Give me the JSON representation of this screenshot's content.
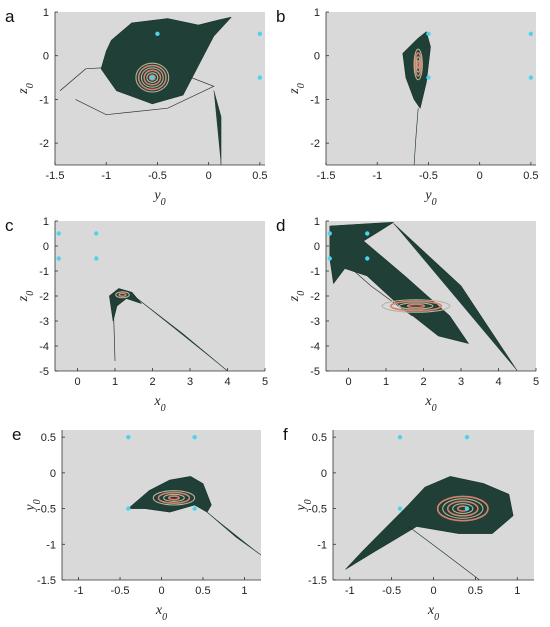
{
  "chart_data": [
    {
      "panel": "a",
      "type": "scatter",
      "xlabel": "y",
      "xlabel_sub": "0",
      "ylabel": "z",
      "ylabel_sub": "0",
      "xlim": [
        -1.5,
        0.55
      ],
      "ylim": [
        -2.5,
        1
      ],
      "xticks": [
        -1.5,
        -1,
        -0.5,
        0,
        0.5
      ],
      "xtick_labels": [
        "-1.5",
        "-1",
        "-0.5",
        "0",
        "0.5"
      ],
      "yticks": [
        1,
        0,
        -1,
        -2
      ],
      "ytick_labels": [
        "1",
        "0",
        "-1",
        "-2"
      ],
      "equilibria": [
        [
          -0.5,
          0.5
        ],
        [
          0.5,
          0.5
        ],
        [
          0.5,
          -0.5
        ],
        [
          -0.55,
          -0.5
        ]
      ],
      "colors": {
        "background": "#d9d9d9",
        "basin": "#1f3f37",
        "accent": "#d4826f",
        "equilibrium": "#4fd2ee"
      }
    },
    {
      "panel": "b",
      "type": "scatter",
      "xlabel": "y",
      "xlabel_sub": "0",
      "ylabel": "z",
      "ylabel_sub": "0",
      "xlim": [
        -1.5,
        0.55
      ],
      "ylim": [
        -2.5,
        1
      ],
      "xticks": [
        -1.5,
        -1,
        -0.5,
        0,
        0.5
      ],
      "xtick_labels": [
        "-1.5",
        "-1",
        "-0.5",
        "0",
        "0.5"
      ],
      "yticks": [
        1,
        0,
        -1,
        -2
      ],
      "ytick_labels": [
        "1",
        "0",
        "-1",
        "-2"
      ],
      "equilibria": [
        [
          -0.5,
          0.5
        ],
        [
          0.5,
          0.5
        ],
        [
          0.5,
          -0.5
        ],
        [
          -0.5,
          -0.5
        ]
      ],
      "colors": {
        "background": "#d9d9d9",
        "basin": "#1f3f37",
        "accent": "#d4826f",
        "equilibrium": "#4fd2ee"
      }
    },
    {
      "panel": "c",
      "type": "scatter",
      "xlabel": "x",
      "xlabel_sub": "0",
      "ylabel": "z",
      "ylabel_sub": "0",
      "xlim": [
        -0.6,
        5
      ],
      "ylim": [
        -5,
        1
      ],
      "xticks": [
        0,
        1,
        2,
        3,
        4,
        5
      ],
      "xtick_labels": [
        "0",
        "1",
        "2",
        "3",
        "4",
        "5"
      ],
      "yticks": [
        1,
        0,
        -1,
        -2,
        -3,
        -4,
        -5
      ],
      "ytick_labels": [
        "1",
        "0",
        "-1",
        "-2",
        "-3",
        "-4",
        "-5"
      ],
      "equilibria": [
        [
          -0.5,
          0.5
        ],
        [
          0.5,
          0.5
        ],
        [
          -0.5,
          -0.5
        ],
        [
          0.5,
          -0.5
        ]
      ],
      "colors": {
        "background": "#d9d9d9",
        "basin": "#1f3f37",
        "accent": "#d4826f",
        "equilibrium": "#4fd2ee"
      }
    },
    {
      "panel": "d",
      "type": "scatter",
      "xlabel": "x",
      "xlabel_sub": "0",
      "ylabel": "z",
      "ylabel_sub": "0",
      "xlim": [
        -0.6,
        5
      ],
      "ylim": [
        -5,
        1
      ],
      "xticks": [
        0,
        1,
        2,
        3,
        4,
        5
      ],
      "xtick_labels": [
        "0",
        "1",
        "2",
        "3",
        "4",
        "5"
      ],
      "yticks": [
        1,
        0,
        -1,
        -2,
        -3,
        -4,
        -5
      ],
      "ytick_labels": [
        "1",
        "0",
        "-1",
        "-2",
        "-3",
        "-4",
        "-5"
      ],
      "equilibria": [
        [
          -0.5,
          0.5
        ],
        [
          0.5,
          0.5
        ],
        [
          -0.5,
          -0.5
        ],
        [
          0.5,
          -0.5
        ]
      ],
      "colors": {
        "background": "#d9d9d9",
        "basin": "#1f3f37",
        "accent": "#d4826f",
        "equilibrium": "#4fd2ee"
      }
    },
    {
      "panel": "e",
      "type": "scatter",
      "xlabel": "x",
      "xlabel_sub": "0",
      "ylabel": "y",
      "ylabel_sub": "0",
      "xlim": [
        -1.2,
        1.2
      ],
      "ylim": [
        -1.5,
        0.6
      ],
      "xticks": [
        -1,
        -0.5,
        0,
        0.5,
        1
      ],
      "xtick_labels": [
        "-1",
        "-0.5",
        "0",
        "0.5",
        "1"
      ],
      "yticks": [
        0.5,
        0,
        -0.5,
        -1,
        -1.5
      ],
      "ytick_labels": [
        "0.5",
        "0",
        "-0.5",
        "-1",
        "-1.5"
      ],
      "equilibria": [
        [
          -0.4,
          0.5
        ],
        [
          0.4,
          0.5
        ],
        [
          -0.4,
          -0.5
        ],
        [
          0.4,
          -0.5
        ]
      ],
      "colors": {
        "background": "#d9d9d9",
        "basin": "#1f3f37",
        "accent": "#b7b59a",
        "equilibrium": "#4fd2ee"
      }
    },
    {
      "panel": "f",
      "type": "scatter",
      "xlabel": "x",
      "xlabel_sub": "0",
      "ylabel": "y",
      "ylabel_sub": "0",
      "xlim": [
        -1.2,
        1.2
      ],
      "ylim": [
        -1.5,
        0.6
      ],
      "xticks": [
        -1,
        -0.5,
        0,
        0.5,
        1
      ],
      "xtick_labels": [
        "-1",
        "-0.5",
        "0",
        "0.5",
        "1"
      ],
      "yticks": [
        0.5,
        0,
        -0.5,
        -1,
        -1.5
      ],
      "ytick_labels": [
        "0.5",
        "0",
        "-0.5",
        "-1",
        "-1.5"
      ],
      "equilibria": [
        [
          -0.4,
          0.5
        ],
        [
          0.4,
          0.5
        ],
        [
          -0.4,
          -0.5
        ],
        [
          0.4,
          -0.5
        ]
      ],
      "colors": {
        "background": "#d9d9d9",
        "basin": "#1f3f37",
        "accent": "#b7b59a",
        "equilibrium": "#4fd2ee"
      }
    }
  ]
}
